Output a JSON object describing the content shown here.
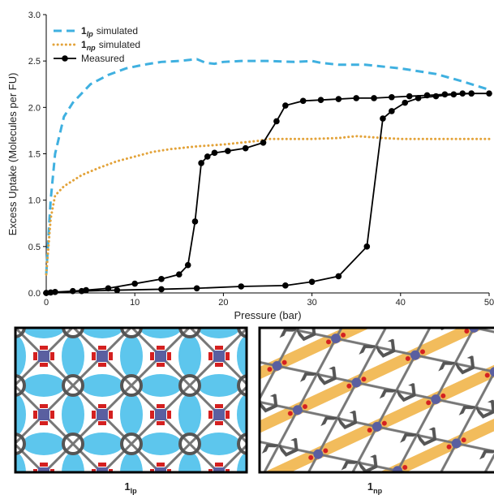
{
  "chart_data": {
    "type": "line",
    "xlabel": "Pressure (bar)",
    "ylabel": "Excess Uptake (Molecules per FU)",
    "xlim": [
      0,
      50
    ],
    "ylim": [
      0,
      3.0
    ],
    "xticks": [
      0,
      10,
      20,
      30,
      40,
      50
    ],
    "yticks": [
      {
        "value": 0,
        "label": "0.0"
      },
      {
        "value": 0.5,
        "label": "0.5"
      },
      {
        "value": 1,
        "label": "1.0"
      },
      {
        "value": 1.5,
        "label": "1.5"
      },
      {
        "value": 2,
        "label": "2.0"
      },
      {
        "value": 2.5,
        "label": "2.5"
      },
      {
        "value": 3,
        "label": "3.0"
      }
    ],
    "legend": "upper left",
    "series": [
      {
        "prefix": "1",
        "subscript": "lp",
        "name": "simulated",
        "color": "#3fb0e0",
        "style": "dashed",
        "x": [
          0,
          0.5,
          1,
          2,
          3,
          5,
          7,
          9,
          11,
          13,
          15,
          16,
          17,
          18,
          19,
          20,
          22,
          25,
          28,
          30,
          31,
          33,
          36,
          40,
          44,
          47,
          50
        ],
        "values": [
          0.2,
          1.0,
          1.5,
          1.9,
          2.05,
          2.25,
          2.35,
          2.42,
          2.46,
          2.49,
          2.5,
          2.51,
          2.52,
          2.48,
          2.47,
          2.49,
          2.5,
          2.5,
          2.49,
          2.5,
          2.48,
          2.46,
          2.46,
          2.42,
          2.36,
          2.28,
          2.19
        ]
      },
      {
        "prefix": "1",
        "subscript": "np",
        "name": "simulated",
        "color": "#e3a33a",
        "style": "dotted",
        "x": [
          0,
          0.5,
          1,
          2,
          4,
          6,
          8,
          10,
          12,
          14,
          17,
          20,
          23,
          24,
          25,
          27,
          30,
          33,
          35,
          38,
          40,
          45,
          50
        ],
        "values": [
          0.2,
          0.8,
          1.05,
          1.15,
          1.27,
          1.35,
          1.42,
          1.47,
          1.52,
          1.55,
          1.58,
          1.6,
          1.63,
          1.64,
          1.66,
          1.66,
          1.66,
          1.67,
          1.69,
          1.67,
          1.66,
          1.66,
          1.66
        ]
      },
      {
        "name": "Measured",
        "color": "#000000",
        "style": "markers",
        "x": [
          0,
          0.5,
          1,
          3,
          4.5,
          7,
          10,
          13,
          15,
          16,
          16.8,
          17.5,
          18.2,
          19,
          20.5,
          22.5,
          24.5,
          26,
          27,
          29,
          31,
          33,
          35,
          37,
          39,
          41,
          43,
          45,
          47,
          48,
          50,
          48,
          46,
          44,
          42,
          40.5,
          39,
          38,
          36.2,
          33,
          30,
          27,
          22,
          17,
          13,
          8,
          4,
          0
        ],
        "values": [
          0,
          0.005,
          0.01,
          0.02,
          0.03,
          0.05,
          0.1,
          0.15,
          0.2,
          0.3,
          0.77,
          1.4,
          1.47,
          1.51,
          1.53,
          1.56,
          1.62,
          1.85,
          2.02,
          2.07,
          2.08,
          2.09,
          2.1,
          2.1,
          2.11,
          2.12,
          2.13,
          2.14,
          2.15,
          2.15,
          2.15,
          2.15,
          2.14,
          2.12,
          2.1,
          2.05,
          1.96,
          1.88,
          0.5,
          0.18,
          0.12,
          0.08,
          0.07,
          0.05,
          0.04,
          0.03,
          0.02,
          0
        ]
      }
    ]
  },
  "panels": [
    {
      "label": "1",
      "subscript": "lp"
    },
    {
      "label": "1",
      "subscript": "np"
    }
  ]
}
